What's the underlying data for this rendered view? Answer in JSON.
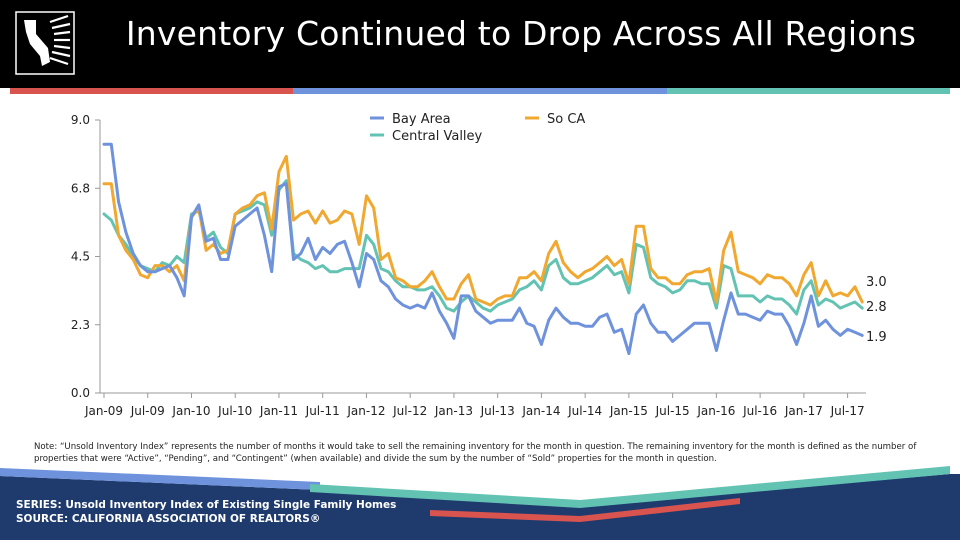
{
  "title": "Inventory Continued to Drop Across All Regions",
  "logo": {
    "icon": "california-realtors-logo-icon"
  },
  "colors": {
    "bay_area": "#6f92dc",
    "so_ca": "#f0a830",
    "central_valley": "#63c3b3",
    "accent_red": "#d9534f"
  },
  "note": "Note: “Unsold Inventory Index” represents the number of months it would take to sell the remaining inventory for the month in question. The remaining inventory for the month is defined as the number of properties that were “Active”, “Pending”, and “Contingent” (when available) and divide the sum by the number of “Sold” properties for the month in question.",
  "footer": {
    "series": "SERIES: Unsold Inventory Index of Existing Single Family Homes",
    "source": "SOURCE:  CALIFORNIA ASSOCIATION OF REALTORS®"
  },
  "chart_data": {
    "type": "line",
    "title": "",
    "xlabel": "",
    "ylabel": "",
    "ylim": [
      0,
      9
    ],
    "yticks": [
      "0.0",
      "2.3",
      "4.5",
      "6.8",
      "9.0"
    ],
    "ytick_values": [
      0,
      2.25,
      4.5,
      6.75,
      9
    ],
    "xtick_labels": [
      "Jan-09",
      "Jul-09",
      "Jan-10",
      "Jul-10",
      "Jan-11",
      "Jul-11",
      "Jan-12",
      "Jul-12",
      "Jan-13",
      "Jul-13",
      "Jan-14",
      "Jul-14",
      "Jan-15",
      "Jul-15",
      "Jan-16",
      "Jul-16",
      "Jan-17",
      "Jul-17"
    ],
    "x_start": "Jan-09",
    "x_end": "Sep-17",
    "grid": false,
    "legend_position": "top-center",
    "series": [
      {
        "name": "Bay Area",
        "color": "#6f92dc",
        "end_label": "1.9",
        "values": [
          8.2,
          8.2,
          6.3,
          5.3,
          4.6,
          4.2,
          4.0,
          4.0,
          4.1,
          4.2,
          3.8,
          3.2,
          5.8,
          6.2,
          5.0,
          5.1,
          4.4,
          4.4,
          5.5,
          5.7,
          5.9,
          6.1,
          5.2,
          4.0,
          6.8,
          6.9,
          4.4,
          4.6,
          5.1,
          4.4,
          4.8,
          4.6,
          4.9,
          5.0,
          4.3,
          3.5,
          4.6,
          4.4,
          3.7,
          3.5,
          3.1,
          2.9,
          2.8,
          2.9,
          2.8,
          3.3,
          2.7,
          2.3,
          1.8,
          3.2,
          3.2,
          2.7,
          2.5,
          2.3,
          2.4,
          2.4,
          2.4,
          2.8,
          2.3,
          2.2,
          1.6,
          2.4,
          2.8,
          2.5,
          2.3,
          2.3,
          2.2,
          2.2,
          2.5,
          2.6,
          2.0,
          2.1,
          1.3,
          2.6,
          2.9,
          2.3,
          2.0,
          2.0,
          1.7,
          1.9,
          2.1,
          2.3,
          2.3,
          2.3,
          1.4,
          2.4,
          3.3,
          2.6,
          2.6,
          2.5,
          2.4,
          2.7,
          2.6,
          2.6,
          2.2,
          1.6,
          2.3,
          3.2,
          2.2,
          2.4,
          2.1,
          1.9,
          2.1,
          2.0,
          1.9
        ]
      },
      {
        "name": "So CA",
        "color": "#f0a830",
        "end_label": "3.0",
        "values": [
          6.9,
          6.9,
          5.2,
          4.7,
          4.4,
          3.9,
          3.8,
          4.2,
          4.2,
          4.0,
          4.2,
          3.7,
          5.8,
          6.1,
          4.7,
          4.9,
          4.6,
          4.7,
          5.9,
          6.1,
          6.2,
          6.5,
          6.6,
          5.4,
          7.3,
          7.8,
          5.7,
          5.9,
          6.0,
          5.6,
          6.0,
          5.6,
          5.7,
          6.0,
          5.9,
          4.9,
          6.5,
          6.1,
          4.4,
          4.6,
          3.8,
          3.7,
          3.5,
          3.5,
          3.7,
          4.0,
          3.5,
          3.1,
          3.1,
          3.6,
          3.9,
          3.1,
          3.0,
          2.9,
          3.1,
          3.2,
          3.2,
          3.8,
          3.8,
          4.0,
          3.7,
          4.6,
          5.0,
          4.3,
          4.0,
          3.8,
          4.0,
          4.1,
          4.3,
          4.5,
          4.2,
          4.4,
          3.6,
          5.5,
          5.5,
          4.1,
          3.8,
          3.8,
          3.6,
          3.6,
          3.9,
          4.0,
          4.0,
          4.1,
          3.0,
          4.7,
          5.3,
          4.0,
          3.9,
          3.8,
          3.6,
          3.9,
          3.8,
          3.8,
          3.6,
          3.2,
          3.9,
          4.3,
          3.2,
          3.7,
          3.2,
          3.3,
          3.2,
          3.5,
          3.0
        ]
      },
      {
        "name": "Central Valley",
        "color": "#63c3b3",
        "end_label": "2.8",
        "values": [
          5.9,
          5.7,
          5.2,
          4.9,
          4.5,
          4.2,
          4.1,
          4.0,
          4.3,
          4.2,
          4.5,
          4.3,
          5.9,
          6.0,
          5.1,
          5.3,
          4.8,
          4.6,
          5.9,
          6.0,
          6.1,
          6.3,
          6.2,
          5.2,
          6.7,
          7.0,
          4.6,
          4.4,
          4.3,
          4.1,
          4.2,
          4.0,
          4.0,
          4.1,
          4.1,
          4.1,
          5.2,
          4.9,
          4.1,
          4.0,
          3.7,
          3.5,
          3.5,
          3.4,
          3.4,
          3.5,
          3.2,
          2.8,
          2.7,
          3.0,
          3.2,
          3.0,
          2.8,
          2.7,
          2.9,
          3.0,
          3.1,
          3.4,
          3.5,
          3.7,
          3.4,
          4.2,
          4.4,
          3.8,
          3.6,
          3.6,
          3.7,
          3.8,
          4.0,
          4.2,
          3.9,
          4.0,
          3.3,
          4.9,
          4.8,
          3.8,
          3.6,
          3.5,
          3.3,
          3.4,
          3.7,
          3.7,
          3.6,
          3.6,
          2.8,
          4.2,
          4.1,
          3.2,
          3.2,
          3.2,
          3.0,
          3.2,
          3.1,
          3.1,
          2.9,
          2.6,
          3.4,
          3.7,
          2.9,
          3.1,
          3.0,
          2.8,
          2.9,
          3.0,
          2.8
        ]
      }
    ]
  }
}
